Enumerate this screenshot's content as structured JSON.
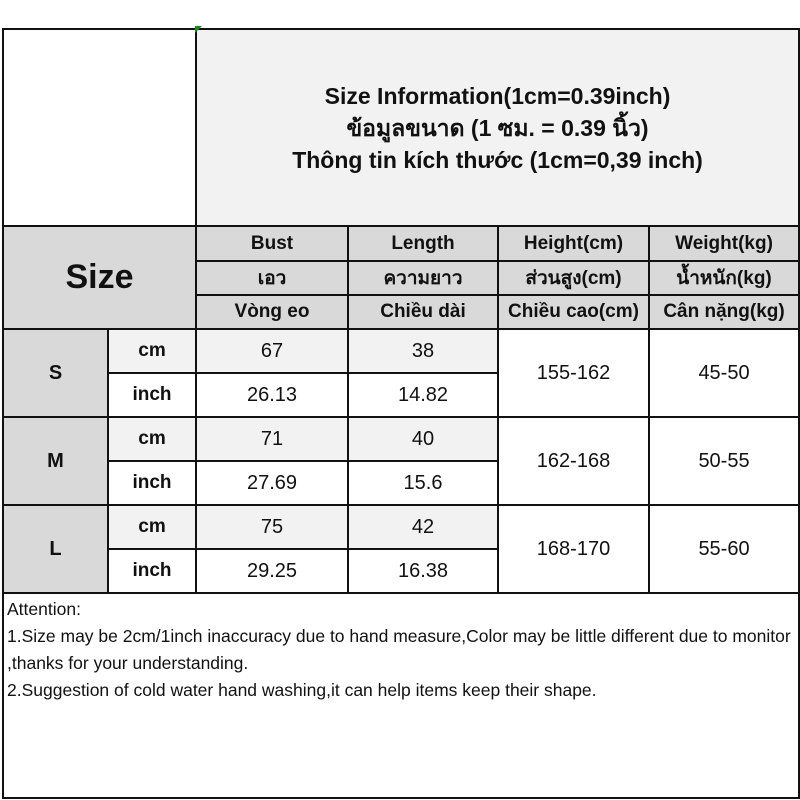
{
  "title": {
    "line1": "Size Information(1cm=0.39inch)",
    "line2": "ข้อมูลขนาด (1 ซม. = 0.39 นิ้ว)",
    "line3": "Thông tin kích thước (1cm=0,39 inch)"
  },
  "size_label": "Size",
  "columns": [
    {
      "en": "Bust",
      "th": "เอว",
      "vi": "Vòng eo"
    },
    {
      "en": "Length",
      "th": "ความยาว",
      "vi": "Chiều dài"
    },
    {
      "en": "Height(cm)",
      "th": "ส่วนสูง(cm)",
      "vi": "Chiều cao(cm)"
    },
    {
      "en": "Weight(kg)",
      "th": "น้ำหนัก(kg)",
      "vi": "Cân nặng(kg)"
    }
  ],
  "rows": [
    {
      "size": "S",
      "cm_label": "cm",
      "inch_label": "inch",
      "bust_cm": "67",
      "length_cm": "38",
      "bust_inch": "26.13",
      "length_inch": "14.82",
      "height": "155-162",
      "weight": "45-50"
    },
    {
      "size": "M",
      "cm_label": "cm",
      "inch_label": "inch",
      "bust_cm": "71",
      "length_cm": "40",
      "bust_inch": "27.69",
      "length_inch": "15.6",
      "height": "162-168",
      "weight": "50-55"
    },
    {
      "size": "L",
      "cm_label": "cm",
      "inch_label": "inch",
      "bust_cm": "75",
      "length_cm": "42",
      "bust_inch": "29.25",
      "length_inch": "16.38",
      "height": "168-170",
      "weight": "55-60"
    }
  ],
  "attention": {
    "heading": "Attention:",
    "note1": "1.Size may be 2cm/1inch inaccuracy due to hand measure,Color may be little different due to monitor ,thanks for your understanding.",
    "note2": "2.Suggestion of cold water hand washing,it can help items keep their shape."
  }
}
